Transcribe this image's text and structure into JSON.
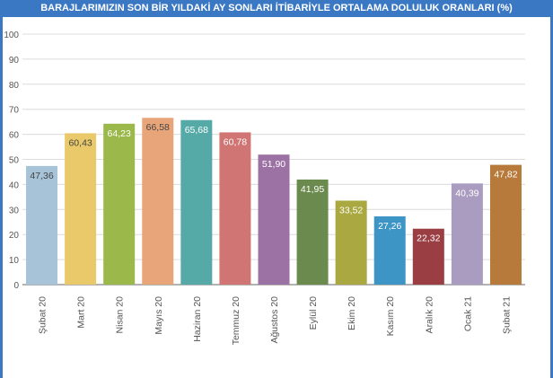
{
  "chart_data": {
    "type": "bar",
    "title": "BARAJLARIMIZIN SON BİR YILDAKİ AY SONLARI İTİBARİYLE ORTALAMA DOLULUK ORANLARI (%)",
    "categories": [
      "Şubat 20",
      "Mart 20",
      "Nisan 20",
      "Mayıs 20",
      "Haziran 20",
      "Temmuz 20",
      "Ağustos 20",
      "Eylül 20",
      "Ekim 20",
      "Kasım 20",
      "Aralık 20",
      "Ocak 21",
      "Şubat 21"
    ],
    "values": [
      47.36,
      60.43,
      64.23,
      66.58,
      65.68,
      60.78,
      51.9,
      41.95,
      33.52,
      27.26,
      22.32,
      40.39,
      47.82
    ],
    "data_labels": [
      "47,36",
      "60,43",
      "64,23",
      "66,58",
      "65,68",
      "60,78",
      "51,90",
      "41,95",
      "33,52",
      "27,26",
      "22,32",
      "40,39",
      "47,82"
    ],
    "colors": [
      "#a7c3d8",
      "#e9c96a",
      "#9bb84a",
      "#e9a57a",
      "#55aaa8",
      "#d07474",
      "#9c71a3",
      "#6a8a4e",
      "#aaa840",
      "#3d95c6",
      "#9b3e43",
      "#aa9cc0",
      "#b87a3a"
    ],
    "label_colors": [
      "#444444",
      "#444444",
      "#ffffff",
      "#444444",
      "#ffffff",
      "#ffffff",
      "#ffffff",
      "#ffffff",
      "#ffffff",
      "#ffffff",
      "#ffffff",
      "#ffffff",
      "#ffffff"
    ],
    "ylim": [
      0,
      100
    ],
    "yticks": [
      "0",
      "10",
      "20",
      "30",
      "40",
      "50",
      "60",
      "70",
      "80",
      "90",
      "100"
    ],
    "grid": true,
    "xlabel": "",
    "ylabel": ""
  }
}
